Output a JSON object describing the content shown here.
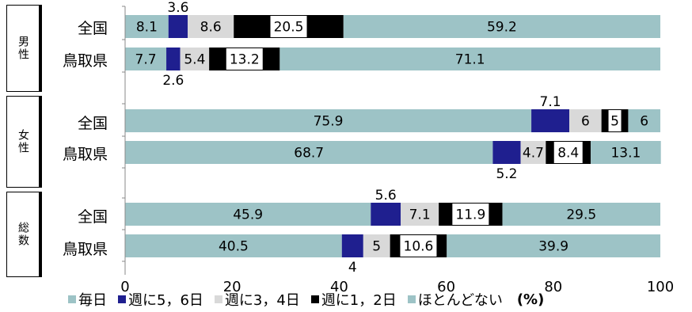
{
  "colors": {
    "teal": "#9dc3c6",
    "navy": "#1f1f8f",
    "light_gray": "#d9d9d9",
    "white": "#ffffff",
    "black": "#000000"
  },
  "groups": [
    {
      "label": "男性",
      "rows": [
        0,
        1
      ]
    },
    {
      "label": "女性",
      "rows": [
        2,
        3
      ]
    },
    {
      "label": "総数",
      "rows": [
        4,
        5
      ]
    }
  ],
  "legend": {
    "items": [
      {
        "label": "毎日",
        "color": "#9dc3c6"
      },
      {
        "label": "週に5，6日",
        "color": "#1f1f8f"
      },
      {
        "label": "週に3，4日",
        "color": "#d9d9d9"
      },
      {
        "label": "週に1，2日",
        "color": "#000000"
      },
      {
        "label": "ほとんどない",
        "color": "#9dc3c6"
      }
    ],
    "unit": "(%)"
  },
  "chart_data": {
    "type": "bar",
    "orientation": "horizontal",
    "stacked": true,
    "categories": [
      "全国",
      "鳥取県",
      "全国",
      "鳥取県",
      "全国",
      "鳥取県"
    ],
    "xlim": [
      0,
      100
    ],
    "x_ticks": [
      "0",
      "20",
      "40",
      "60",
      "80",
      "100"
    ],
    "series": [
      {
        "name": "毎日",
        "color": "#9dc3c6",
        "values": [
          8.1,
          7.7,
          75.9,
          68.7,
          45.9,
          40.5
        ]
      },
      {
        "name": "週に5，6日",
        "color": "#1f1f8f",
        "values": [
          3.6,
          2.6,
          7.1,
          5.2,
          5.6,
          4
        ]
      },
      {
        "name": "週に3，4日",
        "color": "#d9d9d9",
        "values": [
          8.6,
          5.4,
          6,
          4.7,
          7.1,
          5
        ]
      },
      {
        "name": "週に1，2日",
        "color": "#000000",
        "values": [
          20.5,
          13.2,
          5,
          8.4,
          11.9,
          10.6
        ]
      },
      {
        "name": "ほとんどない",
        "color": "#9dc3c6",
        "values": [
          59.2,
          71.1,
          6,
          13.1,
          29.5,
          39.9
        ]
      }
    ],
    "legend_position": "bottom"
  }
}
